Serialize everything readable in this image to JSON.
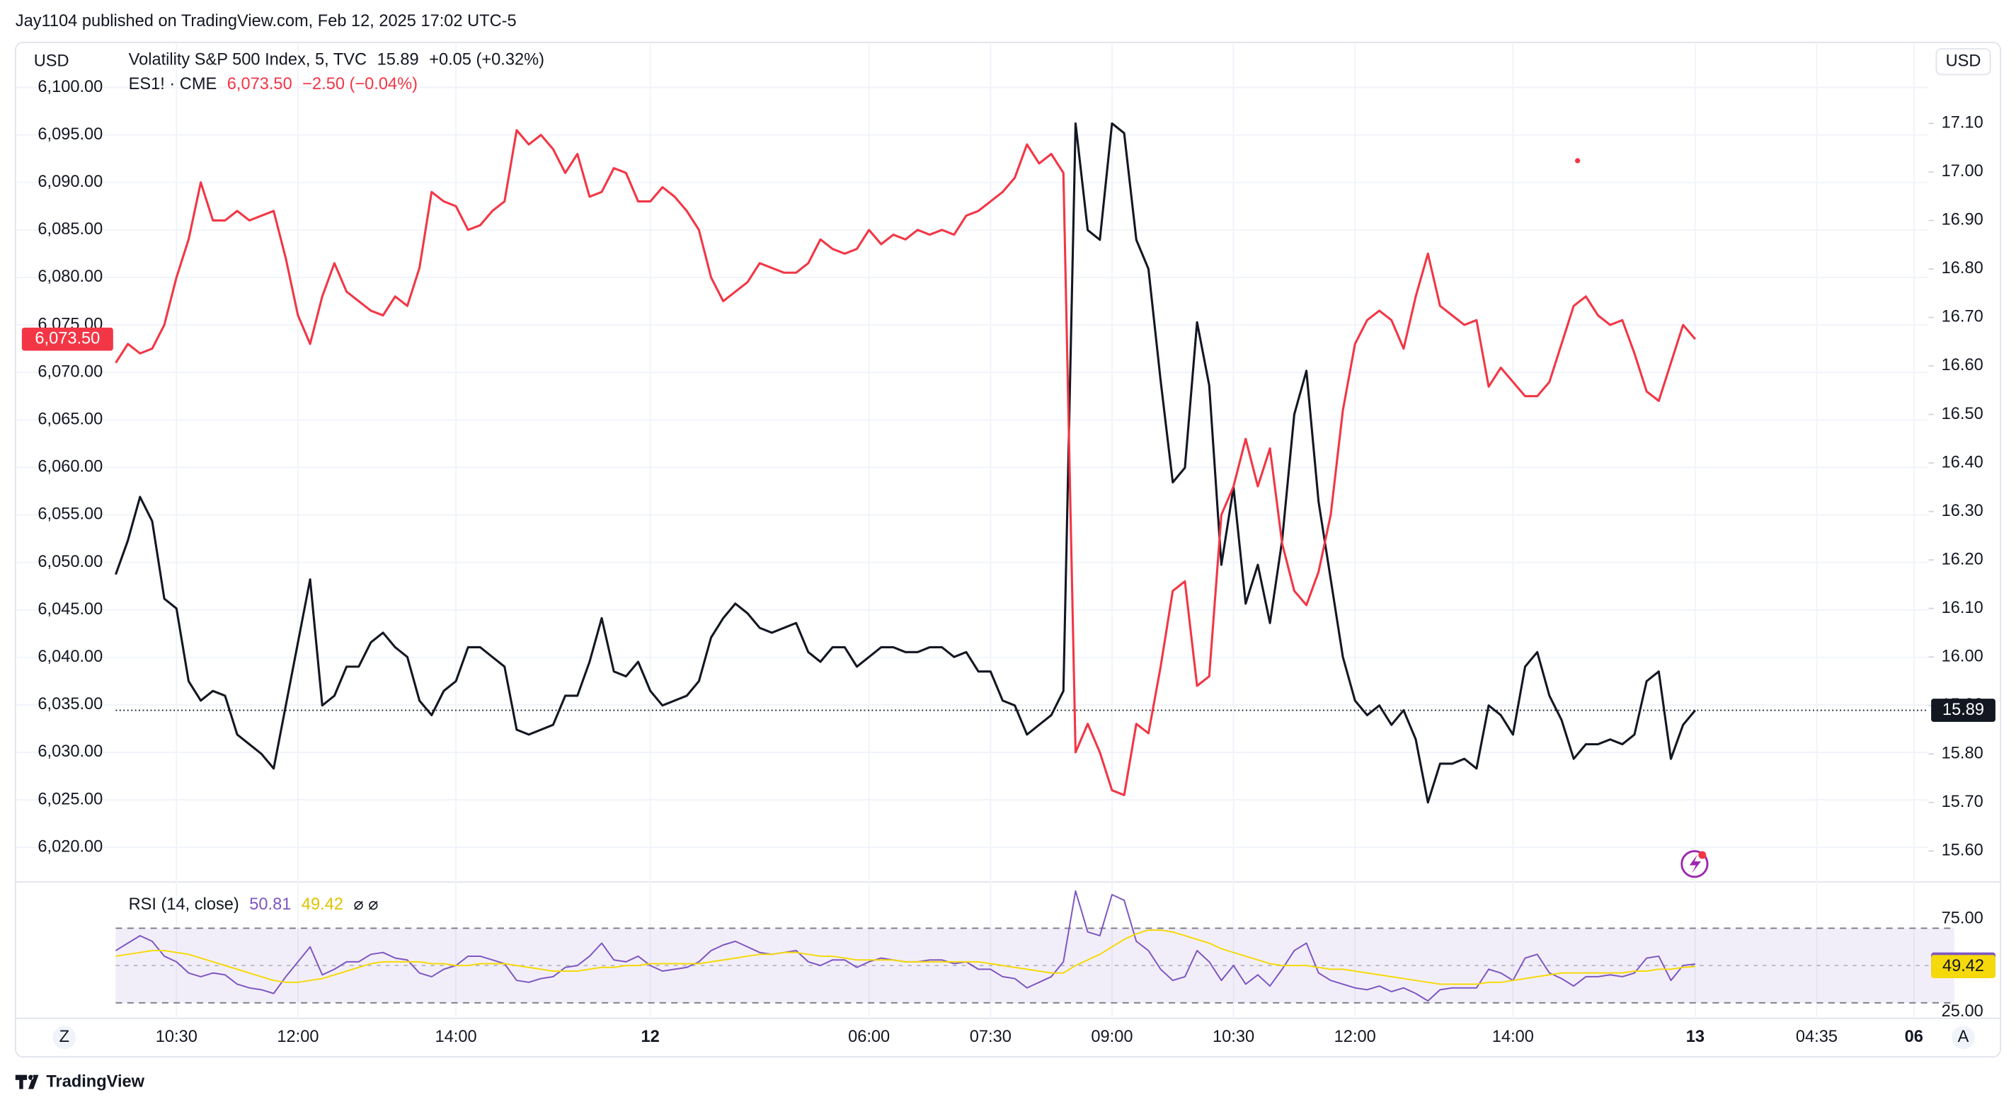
{
  "header": "Jay1104 published on TradingView.com, Feb 12, 2025 17:02 UTC-5",
  "footer": "TradingView",
  "currency": "USD",
  "corner_left": "Z",
  "corner_right": "A",
  "chart_data": {
    "type": "line",
    "categories": [
      null,
      null,
      null,
      null,
      null,
      "10:30",
      null,
      null,
      null,
      null,
      null,
      null,
      null,
      null,
      null,
      "12:00",
      null,
      null,
      null,
      null,
      null,
      null,
      null,
      null,
      null,
      null,
      null,
      null,
      "14:00",
      null,
      null,
      null,
      null,
      null,
      null,
      null,
      null,
      null,
      null,
      null,
      null,
      null,
      null,
      null,
      "12",
      null,
      null,
      null,
      null,
      null,
      null,
      null,
      null,
      null,
      null,
      null,
      null,
      null,
      null,
      null,
      null,
      null,
      "06:00",
      null,
      null,
      null,
      null,
      null,
      null,
      null,
      null,
      null,
      "07:30",
      null,
      null,
      null,
      null,
      null,
      null,
      null,
      null,
      null,
      "09:00",
      null,
      null,
      null,
      null,
      null,
      null,
      null,
      null,
      null,
      "10:30",
      null,
      null,
      null,
      null,
      null,
      null,
      null,
      null,
      null,
      "12:00",
      null,
      null,
      null,
      null,
      null,
      null,
      null,
      null,
      null,
      null,
      null,
      null,
      "14:00",
      null,
      null,
      null,
      null,
      null,
      null,
      null,
      null,
      null,
      null,
      null,
      null,
      null,
      null,
      "13",
      null,
      null,
      null,
      null,
      null,
      null,
      null,
      null,
      null,
      "04:35",
      null,
      null,
      null,
      null,
      null,
      null,
      null,
      "06"
    ],
    "ylim": [
      6016.35,
      6104.74
    ],
    "yticks": [
      {
        "value": 6020,
        "label": "6,020.00"
      },
      {
        "value": 6025,
        "label": "6,025.00"
      },
      {
        "value": 6030,
        "label": "6,030.00"
      },
      {
        "value": 6035,
        "label": "6,035.00"
      },
      {
        "value": 6040,
        "label": "6,040.00"
      },
      {
        "value": 6045,
        "label": "6,045.00"
      },
      {
        "value": 6050,
        "label": "6,050.00"
      },
      {
        "value": 6055,
        "label": "6,055.00"
      },
      {
        "value": 6060,
        "label": "6,060.00"
      },
      {
        "value": 6065,
        "label": "6,065.00"
      },
      {
        "value": 6070,
        "label": "6,070.00"
      },
      {
        "value": 6075,
        "label": "6,075.00"
      },
      {
        "value": 6080,
        "label": "6,080.00"
      },
      {
        "value": 6085,
        "label": "6,085.00"
      },
      {
        "value": 6090,
        "label": "6,090.00"
      },
      {
        "value": 6095,
        "label": "6,095.00"
      },
      {
        "value": 6100,
        "label": "6,100.00"
      }
    ],
    "y2lim": [
      15.536,
      17.267
    ],
    "y2ticks": [
      {
        "value": 15.6,
        "label": "15.60"
      },
      {
        "value": 15.7,
        "label": "15.70"
      },
      {
        "value": 15.8,
        "label": "15.80"
      },
      {
        "value": 15.9,
        "label": "15.90"
      },
      {
        "value": 16,
        "label": "16.00"
      },
      {
        "value": 16.1,
        "label": "16.10"
      },
      {
        "value": 16.2,
        "label": "16.20"
      },
      {
        "value": 16.3,
        "label": "16.30"
      },
      {
        "value": 16.4,
        "label": "16.40"
      },
      {
        "value": 16.5,
        "label": "16.50"
      },
      {
        "value": 16.6,
        "label": "16.60"
      },
      {
        "value": 16.7,
        "label": "16.70"
      },
      {
        "value": 16.8,
        "label": "16.80"
      },
      {
        "value": 16.9,
        "label": "16.90"
      },
      {
        "value": 17,
        "label": "17.00"
      },
      {
        "value": 17.1,
        "label": "17.10"
      }
    ],
    "rsi_title": "RSI (14, close)",
    "rsi_icons": "⌀ ⌀",
    "rsi_ylim": [
      21.7,
      94.8
    ],
    "rsi_yticks": [
      {
        "value": 25,
        "label": "25.00"
      },
      {
        "value": 75,
        "label": "75.00"
      }
    ],
    "rsi_band": [
      30,
      70
    ],
    "rsi_mid": 50,
    "grid": true,
    "series": [
      {
        "name": "Volatility S&P 500 Index, 5, TVC",
        "last_label": "15.89",
        "change": "+0.05 (+0.32%)",
        "color": "#131722",
        "axis": "y2",
        "price_line": true,
        "values": [
          16.17,
          16.24,
          16.33,
          16.28,
          16.12,
          16.1,
          15.95,
          15.91,
          15.93,
          15.92,
          15.84,
          15.82,
          15.8,
          15.77,
          15.9,
          16.03,
          16.16,
          15.9,
          15.92,
          15.98,
          15.98,
          16.03,
          16.05,
          16.02,
          16.0,
          15.91,
          15.88,
          15.93,
          15.95,
          16.02,
          16.02,
          16.0,
          15.98,
          15.85,
          15.84,
          15.85,
          15.86,
          15.92,
          15.92,
          15.99,
          16.08,
          15.97,
          15.96,
          15.99,
          15.93,
          15.9,
          15.91,
          15.92,
          15.95,
          16.04,
          16.08,
          16.11,
          16.09,
          16.06,
          16.05,
          16.06,
          16.07,
          16.01,
          15.99,
          16.02,
          16.02,
          15.98,
          16.0,
          16.02,
          16.02,
          16.01,
          16.01,
          16.02,
          16.02,
          16.0,
          16.01,
          15.97,
          15.97,
          15.91,
          15.9,
          15.84,
          15.86,
          15.88,
          15.93,
          17.1,
          16.88,
          16.86,
          17.1,
          17.08,
          16.86,
          16.8,
          16.57,
          16.36,
          16.39,
          16.69,
          16.56,
          16.19,
          16.35,
          16.11,
          16.19,
          16.07,
          16.24,
          16.5,
          16.59,
          16.32,
          16.16,
          16.0,
          15.91,
          15.88,
          15.9,
          15.86,
          15.89,
          15.83,
          15.7,
          15.78,
          15.78,
          15.79,
          15.77,
          15.9,
          15.88,
          15.84,
          15.98,
          16.01,
          15.92,
          15.87,
          15.79,
          15.82,
          15.82,
          15.83,
          15.82,
          15.84,
          15.95,
          15.97,
          15.79,
          15.86,
          15.89,
          null,
          null,
          null,
          null,
          null,
          null,
          null,
          null,
          null,
          null,
          null,
          null,
          null,
          null,
          null,
          null,
          null,
          null
        ]
      },
      {
        "name": "ES1! · CME",
        "last_label": "6,073.50",
        "change": "−2.50 (−0.04%)",
        "color": "#f23645",
        "axis": "y",
        "values": [
          6071,
          6073,
          6072,
          6072.5,
          6075,
          6080,
          6084,
          6090,
          6086,
          6086,
          6087,
          6086,
          6086.5,
          6087,
          6082,
          6076,
          6073,
          6078,
          6081.5,
          6078.5,
          6077.5,
          6076.5,
          6076,
          6078,
          6077,
          6081,
          6089,
          6088,
          6087.5,
          6085,
          6085.5,
          6087,
          6088,
          6095.5,
          6094,
          6095,
          6093.5,
          6091,
          6093,
          6088.5,
          6089,
          6091.5,
          6091,
          6088,
          6088,
          6089.5,
          6088.5,
          6087,
          6085,
          6080,
          6077.5,
          6078.5,
          6079.5,
          6081.5,
          6081,
          6080.5,
          6080.5,
          6081.5,
          6084,
          6083,
          6082.5,
          6083,
          6085,
          6083.5,
          6084.5,
          6084,
          6085,
          6084.5,
          6085,
          6084.5,
          6086.5,
          6087,
          6088,
          6089,
          6090.5,
          6094,
          6092,
          6093,
          6091,
          6030,
          6033,
          6030,
          6026,
          6025.5,
          6033,
          6032,
          6039,
          6047,
          6048,
          6037,
          6038,
          6055,
          6058,
          6063,
          6058,
          6062,
          6052,
          6047,
          6045.5,
          6049,
          6055,
          6066,
          6073,
          6075.5,
          6076.5,
          6075.5,
          6072.5,
          6078,
          6082.5,
          6077,
          6076,
          6075,
          6075.5,
          6068.5,
          6070.5,
          6069,
          6067.5,
          6067.5,
          6069,
          6073,
          6077,
          6078,
          6076,
          6075,
          6075.5,
          6072,
          6068,
          6067,
          6071,
          6075,
          6073.5,
          null,
          null,
          null,
          null,
          null,
          null,
          null,
          null,
          null,
          null,
          null,
          null,
          null,
          null,
          null,
          null,
          null,
          null
        ]
      },
      {
        "last_label": "50.81",
        "color": "#7e57c2",
        "axis": "rsi",
        "values": [
          58,
          62,
          66,
          63,
          55,
          52,
          46,
          44,
          46,
          45,
          40,
          38,
          37,
          35,
          44,
          52,
          60,
          45,
          48,
          52,
          52,
          56,
          57,
          54,
          53,
          46,
          44,
          48,
          50,
          55,
          55,
          53,
          51,
          42,
          41,
          43,
          44,
          49,
          50,
          55,
          62,
          53,
          52,
          55,
          50,
          47,
          48,
          49,
          52,
          58,
          61,
          63,
          60,
          57,
          56,
          57,
          58,
          52,
          50,
          53,
          53,
          49,
          52,
          54,
          53,
          52,
          52,
          53,
          53,
          51,
          52,
          48,
          48,
          44,
          43,
          38,
          41,
          44,
          52,
          90,
          68,
          66,
          88,
          85,
          63,
          58,
          48,
          42,
          44,
          58,
          52,
          42,
          50,
          40,
          45,
          39,
          48,
          58,
          62,
          46,
          42,
          40,
          38,
          37,
          39,
          36,
          38,
          35,
          31,
          37,
          38,
          38,
          38,
          48,
          46,
          42,
          54,
          56,
          46,
          43,
          39,
          44,
          44,
          45,
          44,
          46,
          54,
          55,
          42,
          50,
          50.81,
          null,
          null,
          null,
          null,
          null,
          null,
          null,
          null,
          null,
          null,
          null,
          null,
          null,
          null,
          null,
          null,
          null,
          null
        ]
      },
      {
        "last_label": "49.42",
        "color": "#f5d90a",
        "axis": "rsi",
        "values": [
          55,
          56,
          57,
          58,
          58,
          57,
          56,
          54,
          52,
          50,
          48,
          46,
          44,
          42,
          41,
          41,
          42,
          43,
          45,
          47,
          49,
          51,
          52,
          52,
          52,
          52,
          51,
          51,
          50,
          50,
          51,
          51,
          51,
          50,
          49,
          48,
          47,
          47,
          47,
          48,
          49,
          49,
          50,
          50,
          51,
          51,
          51,
          51,
          51,
          52,
          53,
          54,
          55,
          56,
          56,
          57,
          57,
          56,
          55,
          55,
          54,
          53,
          53,
          53,
          53,
          52,
          52,
          52,
          52,
          52,
          52,
          52,
          51,
          50,
          49,
          48,
          47,
          46,
          46,
          50,
          53,
          56,
          60,
          64,
          67,
          69,
          69,
          68,
          66,
          64,
          62,
          59,
          57,
          55,
          53,
          51,
          50,
          50,
          50,
          49,
          48,
          48,
          47,
          46,
          45,
          44,
          43,
          42,
          41,
          40,
          40,
          40,
          40,
          41,
          41,
          42,
          43,
          44,
          45,
          46,
          46,
          46,
          46,
          46,
          46,
          47,
          47,
          48,
          48,
          49,
          49.42,
          null,
          null,
          null,
          null,
          null,
          null,
          null,
          null,
          null,
          null,
          null,
          null,
          null,
          null,
          null,
          null,
          null,
          null
        ]
      }
    ]
  }
}
